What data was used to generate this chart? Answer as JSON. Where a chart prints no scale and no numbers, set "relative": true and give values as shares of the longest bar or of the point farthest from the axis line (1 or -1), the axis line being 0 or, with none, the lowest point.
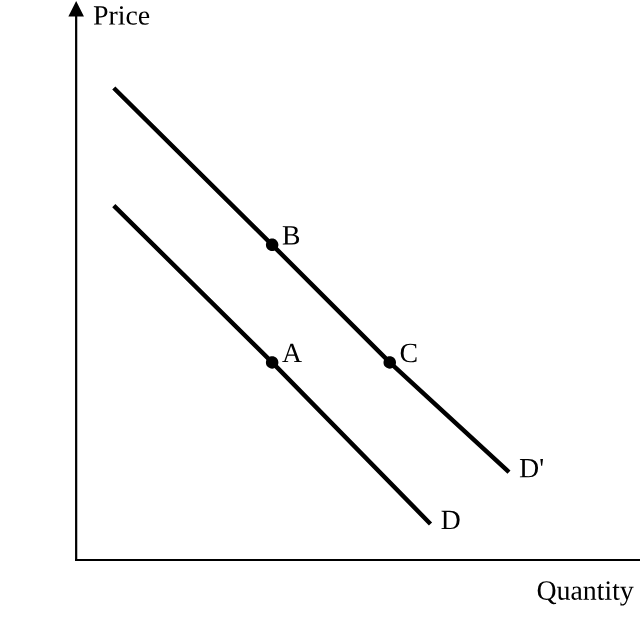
{
  "chart_data": {
    "type": "line",
    "relative": true,
    "xlabel": "Quantity",
    "ylabel": "Price",
    "legend": false,
    "categories": [
      null,
      null,
      null,
      null,
      null,
      null,
      null,
      null,
      null,
      null,
      null
    ],
    "series": [
      {
        "name": "D",
        "color": "#000000",
        "values": [
          0.75,
          null,
          null,
          null,
          0.42,
          null,
          null,
          null,
          0.08,
          null,
          null
        ]
      },
      {
        "name": "D'",
        "color": "#000000",
        "values": [
          1.0,
          null,
          null,
          null,
          0.67,
          null,
          null,
          0.42,
          null,
          null,
          0.19
        ]
      }
    ],
    "annotations": [
      "A",
      "B",
      "C"
    ]
  }
}
